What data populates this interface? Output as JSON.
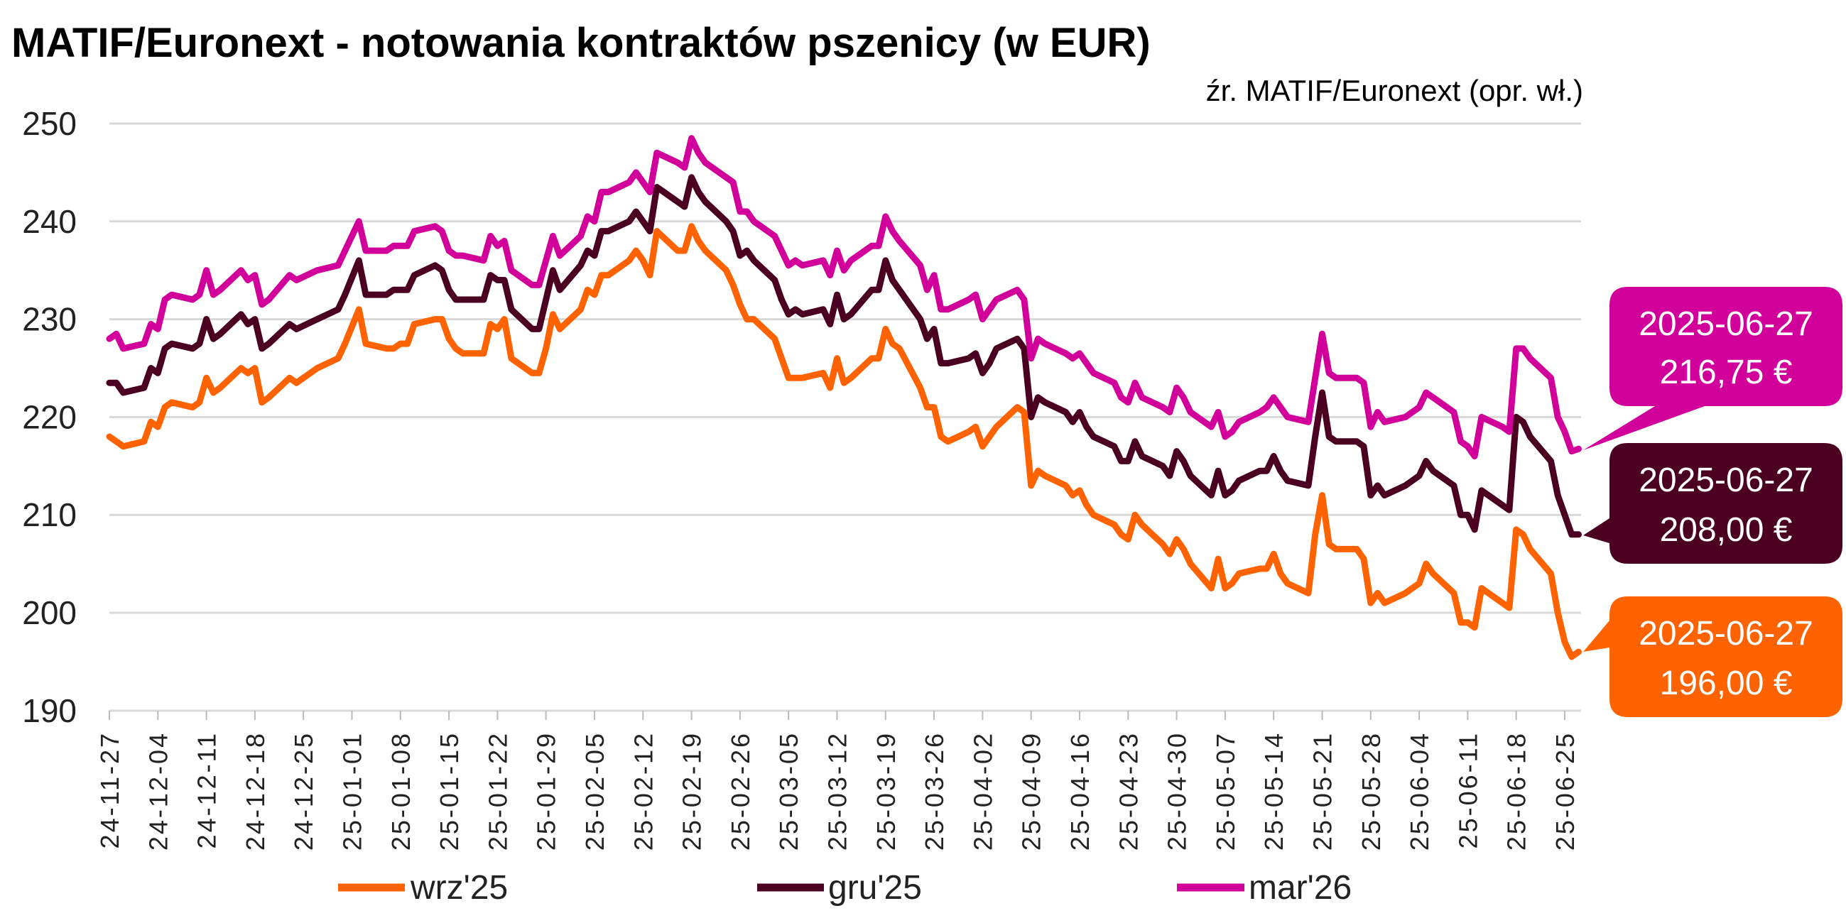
{
  "chart_data": {
    "type": "line",
    "title": "MATIF/Euronext - notowania kontraktów pszenicy (w EUR)",
    "source": "źr. MATIF/Euronext (opr. wł.)",
    "xlabel": "",
    "ylabel": "",
    "ylim": [
      190,
      250
    ],
    "yticks": [
      "190",
      "200",
      "210",
      "220",
      "230",
      "240",
      "250"
    ],
    "grid": true,
    "legend_position": "bottom",
    "xtick_labels": [
      "24-11-27",
      "24-12-04",
      "24-12-11",
      "24-12-18",
      "24-12-25",
      "25-01-01",
      "25-01-08",
      "25-01-15",
      "25-01-22",
      "25-01-29",
      "25-02-05",
      "25-02-12",
      "25-02-19",
      "25-02-26",
      "25-03-05",
      "25-03-12",
      "25-03-19",
      "25-03-26",
      "25-04-02",
      "25-04-09",
      "25-04-16",
      "25-04-23",
      "25-04-30",
      "25-05-07",
      "25-05-14",
      "25-05-21",
      "25-05-28",
      "25-06-04",
      "25-06-11",
      "25-06-18",
      "25-06-25"
    ],
    "x": [
      "2024-11-27",
      "2024-11-28",
      "2024-11-29",
      "2024-12-02",
      "2024-12-03",
      "2024-12-04",
      "2024-12-05",
      "2024-12-06",
      "2024-12-09",
      "2024-12-10",
      "2024-12-11",
      "2024-12-12",
      "2024-12-13",
      "2024-12-16",
      "2024-12-17",
      "2024-12-18",
      "2024-12-19",
      "2024-12-20",
      "2024-12-23",
      "2024-12-24",
      "2024-12-27",
      "2024-12-30",
      "2024-12-31",
      "2025-01-02",
      "2025-01-03",
      "2025-01-06",
      "2025-01-07",
      "2025-01-08",
      "2025-01-09",
      "2025-01-10",
      "2025-01-13",
      "2025-01-14",
      "2025-01-15",
      "2025-01-16",
      "2025-01-17",
      "2025-01-20",
      "2025-01-21",
      "2025-01-22",
      "2025-01-23",
      "2025-01-24",
      "2025-01-27",
      "2025-01-28",
      "2025-01-29",
      "2025-01-30",
      "2025-01-31",
      "2025-02-03",
      "2025-02-04",
      "2025-02-05",
      "2025-02-06",
      "2025-02-07",
      "2025-02-10",
      "2025-02-11",
      "2025-02-12",
      "2025-02-13",
      "2025-02-14",
      "2025-02-17",
      "2025-02-18",
      "2025-02-19",
      "2025-02-20",
      "2025-02-21",
      "2025-02-24",
      "2025-02-25",
      "2025-02-26",
      "2025-02-27",
      "2025-02-28",
      "2025-03-03",
      "2025-03-04",
      "2025-03-05",
      "2025-03-06",
      "2025-03-07",
      "2025-03-10",
      "2025-03-11",
      "2025-03-12",
      "2025-03-13",
      "2025-03-14",
      "2025-03-17",
      "2025-03-18",
      "2025-03-19",
      "2025-03-20",
      "2025-03-21",
      "2025-03-24",
      "2025-03-25",
      "2025-03-26",
      "2025-03-27",
      "2025-03-28",
      "2025-03-31",
      "2025-04-01",
      "2025-04-02",
      "2025-04-03",
      "2025-04-04",
      "2025-04-07",
      "2025-04-08",
      "2025-04-09",
      "2025-04-10",
      "2025-04-11",
      "2025-04-14",
      "2025-04-15",
      "2025-04-16",
      "2025-04-17",
      "2025-04-18",
      "2025-04-21",
      "2025-04-22",
      "2025-04-23",
      "2025-04-24",
      "2025-04-25",
      "2025-04-28",
      "2025-04-29",
      "2025-04-30",
      "2025-05-01",
      "2025-05-02",
      "2025-05-05",
      "2025-05-06",
      "2025-05-07",
      "2025-05-08",
      "2025-05-09",
      "2025-05-12",
      "2025-05-13",
      "2025-05-14",
      "2025-05-15",
      "2025-05-16",
      "2025-05-19",
      "2025-05-20",
      "2025-05-21",
      "2025-05-22",
      "2025-05-23",
      "2025-05-26",
      "2025-05-27",
      "2025-05-28",
      "2025-05-29",
      "2025-05-30",
      "2025-06-02",
      "2025-06-03",
      "2025-06-04",
      "2025-06-05",
      "2025-06-06",
      "2025-06-09",
      "2025-06-10",
      "2025-06-11",
      "2025-06-12",
      "2025-06-13",
      "2025-06-16",
      "2025-06-17",
      "2025-06-18",
      "2025-06-19",
      "2025-06-20",
      "2025-06-23",
      "2025-06-24",
      "2025-06-25",
      "2025-06-26",
      "2025-06-27"
    ],
    "series": [
      {
        "name": "wrz'25",
        "color": "#ff6200",
        "values": [
          218,
          217.5,
          217,
          217.5,
          219.5,
          219,
          221,
          221.5,
          221,
          221.5,
          224,
          222.5,
          223,
          225,
          224.5,
          225,
          221.5,
          222,
          224,
          223.5,
          225,
          226,
          227.5,
          231,
          227.5,
          227,
          227,
          227.5,
          227.5,
          229.5,
          230,
          230,
          228,
          227,
          226.5,
          226.5,
          229.5,
          229,
          230,
          226,
          224.5,
          224.5,
          227,
          230.5,
          229,
          231,
          233,
          232.5,
          234.5,
          234.5,
          236,
          237,
          236,
          234.5,
          239,
          237,
          237,
          239.5,
          238,
          237,
          235,
          233.5,
          231.5,
          230,
          230,
          228,
          226,
          224,
          224,
          224,
          224.5,
          223,
          226,
          223.5,
          224,
          226,
          226,
          229,
          227.5,
          227,
          223,
          221,
          221,
          218,
          217.5,
          218.5,
          219,
          217,
          218,
          219,
          221,
          220.5,
          213,
          214.5,
          214,
          213,
          212,
          212.5,
          211,
          210,
          209,
          208,
          207.5,
          210,
          209,
          207,
          206,
          207.5,
          206.5,
          205,
          202.5,
          205.5,
          202.5,
          203,
          204,
          204.5,
          204.5,
          206,
          204,
          203,
          202,
          208,
          212,
          207,
          206.5,
          206.5,
          205.5,
          201,
          202,
          201,
          202,
          202.5,
          203,
          205,
          204,
          202,
          199,
          199,
          198.5,
          202.5,
          201,
          200.5,
          208.5,
          208,
          206.5,
          204,
          200,
          197,
          195.5,
          196
        ],
        "callout_date": "2025-06-27",
        "callout_value": "196,00 €"
      },
      {
        "name": "gru'25",
        "color": "#4b0022",
        "values": [
          223.5,
          223.5,
          222.5,
          223,
          225,
          224.5,
          227,
          227.5,
          227,
          227.5,
          230,
          228,
          228.5,
          230.5,
          229.5,
          230,
          227,
          227.5,
          229.5,
          229,
          230,
          231,
          232.5,
          236,
          232.5,
          232.5,
          233,
          233,
          233,
          234.5,
          235.5,
          235,
          233,
          232,
          232,
          232,
          234.5,
          234,
          234,
          231,
          229,
          229,
          232,
          235,
          233,
          235.5,
          237,
          236.5,
          239,
          239,
          240,
          241,
          240,
          239,
          243.5,
          242,
          241.5,
          244.5,
          243,
          242,
          240,
          239,
          236.5,
          237,
          236,
          234,
          232,
          230.5,
          231,
          230.5,
          231,
          229.5,
          232.5,
          230,
          230.5,
          233,
          233,
          236,
          234,
          233,
          230,
          228,
          229,
          225.5,
          225.5,
          226,
          226.5,
          224.5,
          225.5,
          227,
          228,
          227,
          220,
          222,
          221.5,
          220.5,
          219.5,
          220.5,
          219,
          218,
          217,
          215.5,
          215.5,
          217.5,
          216,
          215,
          214,
          216.5,
          215.5,
          214,
          212,
          214.5,
          212,
          212.5,
          213.5,
          214.5,
          214.5,
          216,
          214.5,
          213.5,
          213,
          218,
          222.5,
          218,
          217.5,
          217.5,
          217,
          212,
          213,
          212,
          213,
          213.5,
          214,
          215.5,
          214.5,
          213,
          210,
          210,
          208.5,
          212.5,
          211,
          210.5,
          220,
          219.5,
          218,
          215.5,
          212,
          210,
          208,
          208
        ],
        "callout_date": "2025-06-27",
        "callout_value": "208,00 €"
      },
      {
        "name": "mar'26",
        "color": "#d2009a",
        "values": [
          228,
          228.5,
          227,
          227.5,
          229.5,
          229,
          232,
          232.5,
          232,
          232.5,
          235,
          232.5,
          233,
          235,
          234,
          234.5,
          231.5,
          232,
          234.5,
          234,
          235,
          235.5,
          237,
          240,
          237,
          237,
          237.5,
          237.5,
          237.5,
          239,
          239.5,
          239,
          237,
          236.5,
          236.5,
          236,
          238.5,
          237.5,
          238,
          235,
          233.5,
          233.5,
          236,
          238.5,
          236.5,
          238.5,
          240.5,
          240,
          243,
          243,
          244,
          245,
          244,
          243,
          247,
          246,
          245.5,
          248.5,
          247,
          246,
          244.5,
          244,
          241,
          241,
          240,
          238.5,
          237,
          235.5,
          236,
          235.5,
          236,
          234.5,
          237,
          235,
          236,
          237.5,
          237.5,
          240.5,
          239,
          238,
          235.5,
          233,
          234.5,
          231,
          231,
          232,
          232.5,
          230,
          231,
          232,
          233,
          232,
          226,
          228,
          227.5,
          226.5,
          226,
          226.5,
          225.5,
          224.5,
          223.5,
          222,
          221.5,
          223.5,
          222,
          221,
          220.5,
          223,
          222,
          220.5,
          219,
          220.5,
          218,
          218.5,
          219.5,
          220.5,
          221,
          222,
          221,
          220,
          219.5,
          224,
          228.5,
          224.5,
          224,
          224,
          223.5,
          219,
          220.5,
          219.5,
          220,
          220.5,
          221,
          222.5,
          222,
          220.5,
          217.5,
          217,
          216,
          220,
          219,
          218.5,
          227,
          227,
          226,
          224,
          220,
          218.5,
          216.5,
          216.75
        ],
        "callout_date": "2025-06-27",
        "callout_value": "216,75 €"
      }
    ]
  }
}
